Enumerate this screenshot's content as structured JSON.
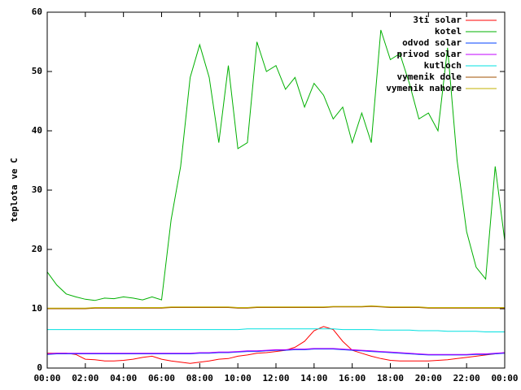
{
  "chart_data": {
    "type": "line",
    "ylabel": "teplota ve C",
    "x": [
      0,
      0.5,
      1,
      1.5,
      2,
      2.5,
      3,
      3.5,
      4,
      4.5,
      5,
      5.5,
      6,
      6.5,
      7,
      7.5,
      8,
      8.5,
      9,
      9.5,
      10,
      10.5,
      11,
      11.5,
      12,
      12.5,
      13,
      13.5,
      14,
      14.5,
      15,
      15.5,
      16,
      16.5,
      17,
      17.5,
      18,
      18.5,
      19,
      19.5,
      20,
      20.5,
      21,
      21.5,
      22,
      22.5,
      23,
      23.5,
      24
    ],
    "xlim": [
      0,
      24
    ],
    "xticks": [
      {
        "value": 0,
        "label": "00:00"
      },
      {
        "value": 2,
        "label": "02:00"
      },
      {
        "value": 4,
        "label": "04:00"
      },
      {
        "value": 6,
        "label": "06:00"
      },
      {
        "value": 8,
        "label": "08:00"
      },
      {
        "value": 10,
        "label": "10:00"
      },
      {
        "value": 12,
        "label": "12:00"
      },
      {
        "value": 14,
        "label": "14:00"
      },
      {
        "value": 16,
        "label": "16:00"
      },
      {
        "value": 18,
        "label": "18:00"
      },
      {
        "value": 20,
        "label": "20:00"
      },
      {
        "value": 22,
        "label": "22:00"
      },
      {
        "value": 24,
        "label": "00:00"
      }
    ],
    "ylim": [
      0,
      60
    ],
    "yticks": [
      0,
      10,
      20,
      30,
      40,
      50,
      60
    ],
    "legend": "top-right",
    "series": [
      {
        "name": "3ti solar",
        "color": "#ff0000",
        "values": [
          2.5,
          2.5,
          2.5,
          2.3,
          1.5,
          1.4,
          1.2,
          1.2,
          1.3,
          1.5,
          1.8,
          2,
          1.5,
          1.2,
          1,
          0.8,
          1,
          1.2,
          1.5,
          1.6,
          2,
          2.2,
          2.5,
          2.6,
          2.8,
          3,
          3.5,
          4.5,
          6.3,
          7,
          6.5,
          4.5,
          3,
          2.5,
          2,
          1.6,
          1.3,
          1.2,
          1.2,
          1.2,
          1.2,
          1.3,
          1.4,
          1.6,
          1.8,
          2,
          2.2,
          2.4,
          2.6
        ]
      },
      {
        "name": "kotel",
        "color": "#00b000",
        "values": [
          16.2,
          14,
          12.5,
          12,
          11.6,
          11.4,
          11.8,
          11.7,
          12,
          11.8,
          11.5,
          12,
          11.5,
          25,
          34,
          49,
          54.5,
          49,
          38,
          51,
          37,
          38,
          55,
          50,
          51,
          47,
          49,
          44,
          48,
          46,
          42,
          44,
          38,
          43,
          38,
          57,
          52,
          53,
          48,
          42,
          43,
          40,
          54,
          35,
          23,
          17,
          15,
          34,
          21.5
        ]
      },
      {
        "name": "odvod solar",
        "color": "#0040ff",
        "values": [
          2.3,
          2.4,
          2.4,
          2.4,
          2.4,
          2.4,
          2.4,
          2.4,
          2.4,
          2.4,
          2.4,
          2.4,
          2.4,
          2.4,
          2.4,
          2.4,
          2.5,
          2.5,
          2.6,
          2.6,
          2.7,
          2.8,
          2.8,
          2.9,
          3,
          3,
          3.1,
          3.1,
          3.2,
          3.2,
          3.2,
          3.1,
          3,
          2.9,
          2.8,
          2.7,
          2.6,
          2.5,
          2.4,
          2.3,
          2.2,
          2.2,
          2.2,
          2.2,
          2.2,
          2.3,
          2.3,
          2.4,
          2.5
        ]
      },
      {
        "name": "privod solar",
        "color": "#c000ff",
        "values": [
          2.4,
          2.5,
          2.5,
          2.5,
          2.5,
          2.5,
          2.5,
          2.5,
          2.5,
          2.5,
          2.5,
          2.5,
          2.5,
          2.5,
          2.5,
          2.5,
          2.6,
          2.6,
          2.7,
          2.7,
          2.8,
          2.9,
          2.9,
          3,
          3.1,
          3.1,
          3.2,
          3.2,
          3.3,
          3.3,
          3.3,
          3.2,
          3.1,
          3,
          2.9,
          2.8,
          2.7,
          2.6,
          2.5,
          2.4,
          2.3,
          2.3,
          2.3,
          2.3,
          2.3,
          2.4,
          2.4,
          2.5,
          2.6
        ]
      },
      {
        "name": "kutloch",
        "color": "#00e0e0",
        "values": [
          6.5,
          6.5,
          6.5,
          6.5,
          6.5,
          6.5,
          6.5,
          6.5,
          6.5,
          6.5,
          6.5,
          6.5,
          6.5,
          6.5,
          6.5,
          6.5,
          6.5,
          6.5,
          6.5,
          6.5,
          6.5,
          6.6,
          6.6,
          6.6,
          6.6,
          6.6,
          6.6,
          6.6,
          6.6,
          6.6,
          6.6,
          6.5,
          6.5,
          6.5,
          6.5,
          6.4,
          6.4,
          6.4,
          6.4,
          6.3,
          6.3,
          6.3,
          6.2,
          6.2,
          6.2,
          6.2,
          6.1,
          6.1,
          6.1
        ]
      },
      {
        "name": "vymenik dole",
        "color": "#a05000",
        "values": [
          10,
          10,
          10,
          10,
          10,
          10.1,
          10.1,
          10.1,
          10.1,
          10.1,
          10.1,
          10.1,
          10.1,
          10.2,
          10.2,
          10.2,
          10.2,
          10.2,
          10.2,
          10.2,
          10.1,
          10.1,
          10.2,
          10.2,
          10.2,
          10.2,
          10.2,
          10.2,
          10.2,
          10.2,
          10.3,
          10.3,
          10.3,
          10.3,
          10.4,
          10.3,
          10.2,
          10.2,
          10.2,
          10.2,
          10.1,
          10.1,
          10.1,
          10.1,
          10.1,
          10.1,
          10.1,
          10.1,
          10.1
        ]
      },
      {
        "name": "vymenik nahore",
        "color": "#c0b000",
        "values": [
          10.1,
          10.1,
          10.1,
          10.1,
          10.1,
          10.2,
          10.2,
          10.2,
          10.2,
          10.2,
          10.2,
          10.2,
          10.2,
          10.3,
          10.3,
          10.3,
          10.3,
          10.3,
          10.3,
          10.3,
          10.2,
          10.2,
          10.3,
          10.3,
          10.3,
          10.3,
          10.3,
          10.3,
          10.3,
          10.3,
          10.4,
          10.4,
          10.4,
          10.4,
          10.5,
          10.4,
          10.3,
          10.3,
          10.3,
          10.3,
          10.2,
          10.2,
          10.2,
          10.2,
          10.2,
          10.2,
          10.2,
          10.2,
          10.2
        ]
      }
    ]
  }
}
